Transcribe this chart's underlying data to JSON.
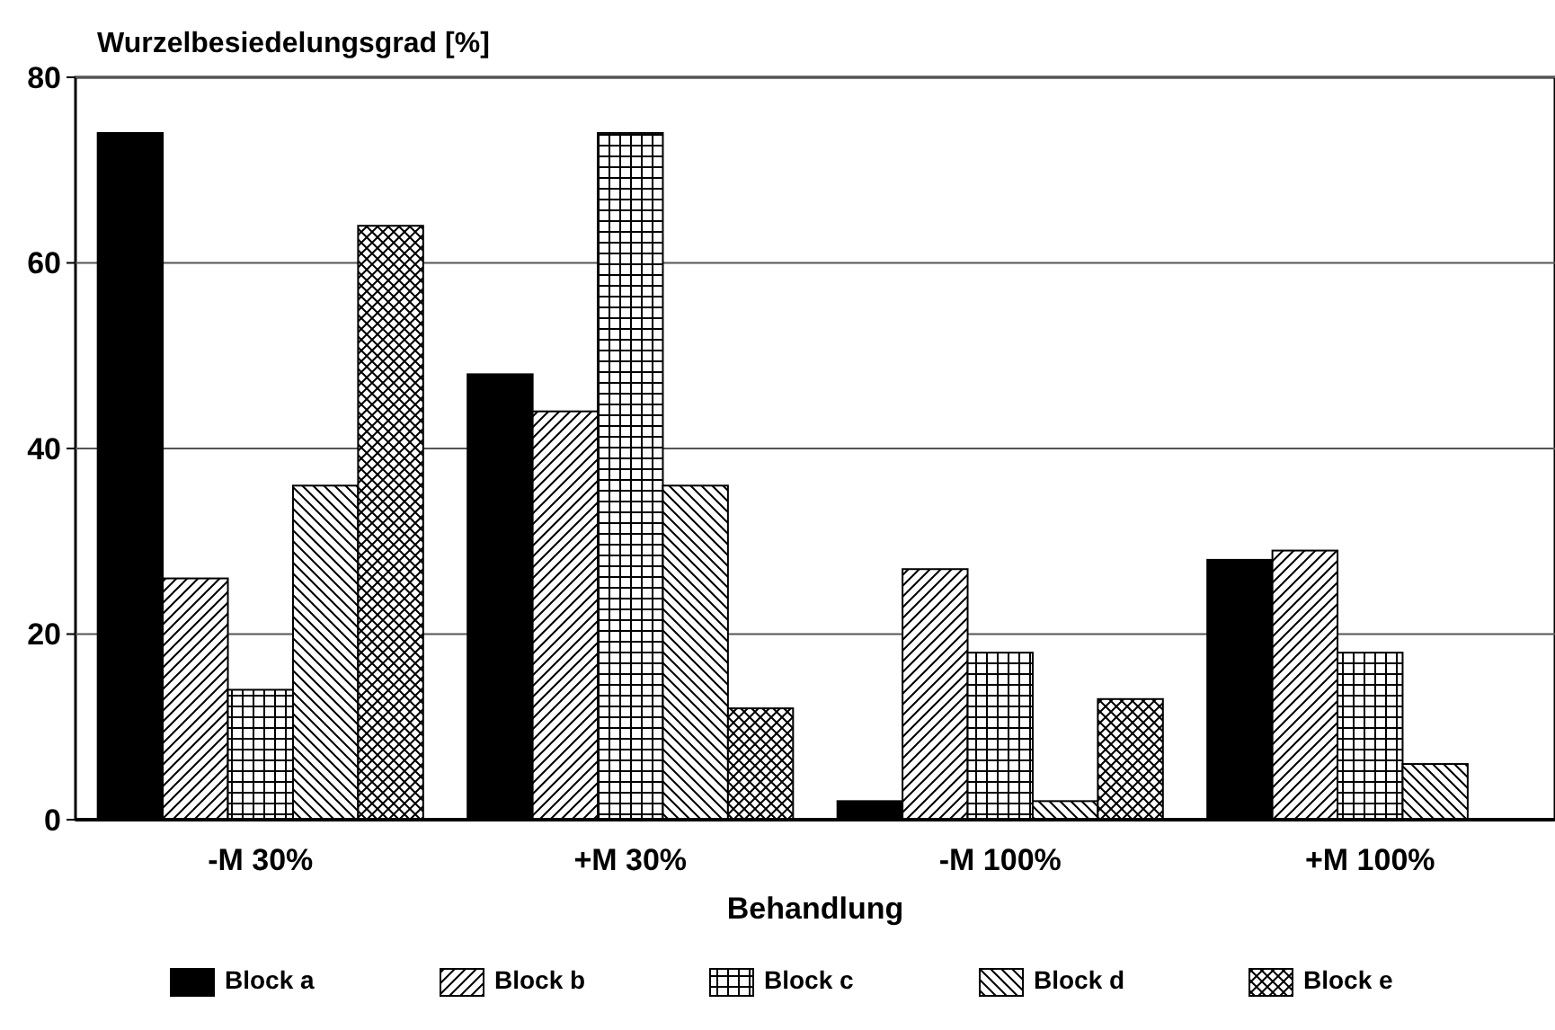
{
  "chart_data": {
    "type": "bar",
    "ylabel": "Wurzelbesiedelungsgrad [%]",
    "xlabel": "Behandlung",
    "categories": [
      "-M 30%",
      "+M 30%",
      "-M 100%",
      "+M 100%"
    ],
    "series": [
      {
        "name": "Block a",
        "color": "#000000",
        "values": [
          74,
          48,
          2,
          28
        ]
      },
      {
        "name": "Block b",
        "color": "#000000",
        "values": [
          26,
          44,
          27,
          29
        ]
      },
      {
        "name": "Block c",
        "color": "#000000",
        "values": [
          14,
          74,
          18,
          18
        ]
      },
      {
        "name": "Block d",
        "color": "#000000",
        "values": [
          36,
          36,
          2,
          6
        ]
      },
      {
        "name": "Block e",
        "color": "#000000",
        "values": [
          64,
          12,
          13,
          null
        ]
      }
    ],
    "ylim": [
      0,
      80
    ],
    "yticks": [
      0,
      20,
      40,
      60,
      80
    ],
    "grid": "y",
    "legend": "bottom"
  }
}
